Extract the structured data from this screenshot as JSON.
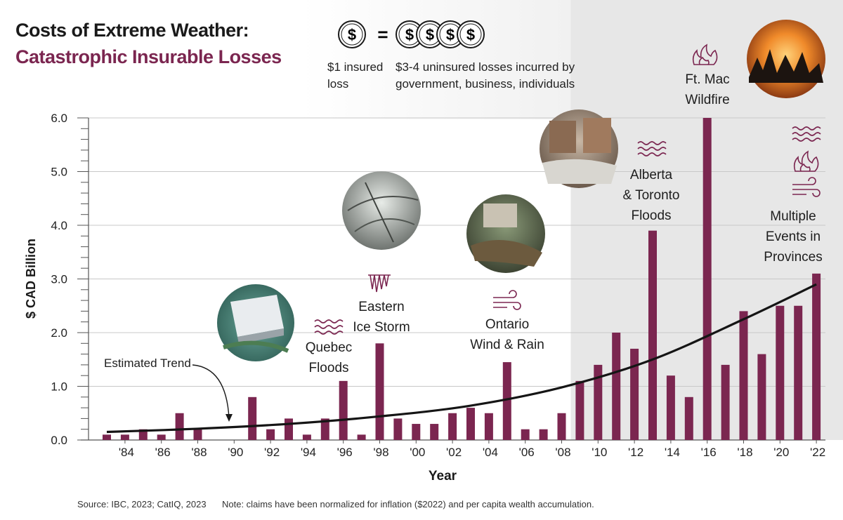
{
  "title": {
    "line1": "Costs of Extreme Weather:",
    "line2": "Catastrophic Insurable Losses"
  },
  "legend": {
    "coin_symbol": "$",
    "equals": "=",
    "insured_line1": "$1 insured",
    "insured_line2": "loss",
    "uninsured_line1": "$3-4 uninsured losses incurred by",
    "uninsured_line2": "government, business, individuals"
  },
  "events": {
    "quebec": {
      "line1": "Quebec",
      "line2": "Floods"
    },
    "ice_storm": {
      "line1": "Eastern",
      "line2": "Ice Storm"
    },
    "ontario": {
      "line1": "Ontario",
      "line2": "Wind & Rain"
    },
    "alberta": {
      "line1": "Alberta",
      "line2": "& Toronto",
      "line3": "Floods"
    },
    "ft_mac": {
      "line1": "Ft. Mac",
      "line2": "Wildfire"
    },
    "multiple": {
      "line1": "Multiple",
      "line2": "Events in",
      "line3": "Provinces"
    }
  },
  "trend_label": "Estimated Trend",
  "footer": {
    "source": "Source: IBC, 2023; CatIQ, 2023",
    "note": "Note: claims have been normalized for inflation ($2022) and per capita wealth accumulation."
  },
  "chart_data": {
    "type": "bar",
    "xlabel": "Year",
    "ylabel": "$ CAD Billion",
    "ylim": [
      0,
      6
    ],
    "yticks": [
      "0.0",
      "1.0",
      "2.0",
      "3.0",
      "4.0",
      "5.0",
      "6.0"
    ],
    "x": [
      1983,
      1984,
      1985,
      1986,
      1987,
      1988,
      1989,
      1990,
      1991,
      1992,
      1993,
      1994,
      1995,
      1996,
      1997,
      1998,
      1999,
      2000,
      2001,
      2002,
      2003,
      2004,
      2005,
      2006,
      2007,
      2008,
      2009,
      2010,
      2011,
      2012,
      2013,
      2014,
      2015,
      2016,
      2017,
      2018,
      2019,
      2020,
      2021,
      2022
    ],
    "values": [
      0.1,
      0.1,
      0.2,
      0.1,
      0.5,
      0.2,
      0,
      0,
      0.8,
      0.2,
      0.4,
      0.1,
      0.4,
      1.1,
      0.1,
      1.8,
      0.4,
      0.3,
      0.3,
      0.5,
      0.6,
      0.5,
      1.45,
      0.2,
      0.2,
      0.5,
      1.1,
      1.4,
      2.0,
      1.7,
      3.9,
      1.2,
      0.8,
      6.0,
      1.4,
      2.4,
      1.6,
      2.5,
      2.5,
      3.1
    ],
    "tick_years": [
      1984,
      1986,
      1988,
      1990,
      1992,
      1994,
      1996,
      1998,
      2000,
      2002,
      2004,
      2006,
      2008,
      2010,
      2012,
      2014,
      2016,
      2018,
      2020,
      2022
    ],
    "tick_labels": [
      "'84",
      "'86",
      "'88",
      "'90",
      "'92",
      "'94",
      "'96",
      "'98",
      "'00",
      "'02",
      "'04",
      "'06",
      "'08",
      "'10",
      "'12",
      "'14",
      "'16",
      "'18",
      "'20",
      "'22"
    ],
    "trend": {
      "name": "Estimated Trend",
      "x": [
        1983,
        1988,
        1993,
        1998,
        2003,
        2008,
        2013,
        2018,
        2022
      ],
      "y": [
        0.15,
        0.21,
        0.3,
        0.44,
        0.64,
        0.98,
        1.5,
        2.25,
        2.9
      ]
    },
    "bar_color": "#7b2650",
    "shade_from_year": 2009
  }
}
